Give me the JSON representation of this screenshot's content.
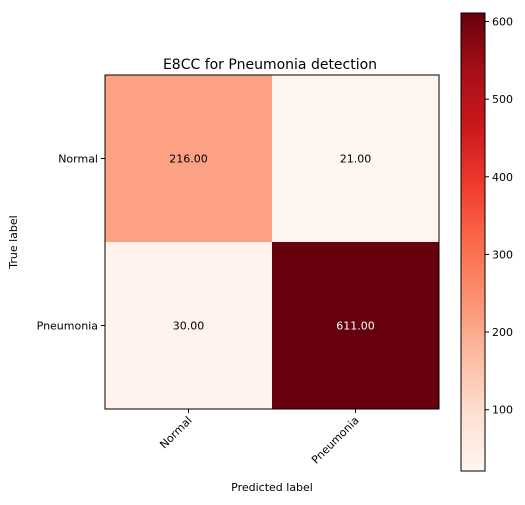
{
  "chart_data": {
    "type": "heatmap",
    "title": "E8CC for Pneumonia detection",
    "xlabel": "Predicted label",
    "ylabel": "True label",
    "x_categories": [
      "Normal",
      "Pneumonia"
    ],
    "y_categories": [
      "Normal",
      "Pneumonia"
    ],
    "matrix": [
      [
        216,
        21
      ],
      [
        30,
        611
      ]
    ],
    "cell_labels": [
      [
        "216.00",
        "21.00"
      ],
      [
        "30.00",
        "611.00"
      ]
    ],
    "colormap": "Reds",
    "colorbar": {
      "range": [
        21,
        611
      ],
      "ticks": [
        100,
        200,
        300,
        400,
        500,
        600
      ],
      "tick_labels": [
        "100",
        "200",
        "300",
        "400",
        "500",
        "600"
      ]
    }
  },
  "colors": {
    "low": "#fff5f0",
    "high": "#67000d",
    "text_light": "#ffffff",
    "text_dark": "#000000",
    "axis": "#000000"
  }
}
